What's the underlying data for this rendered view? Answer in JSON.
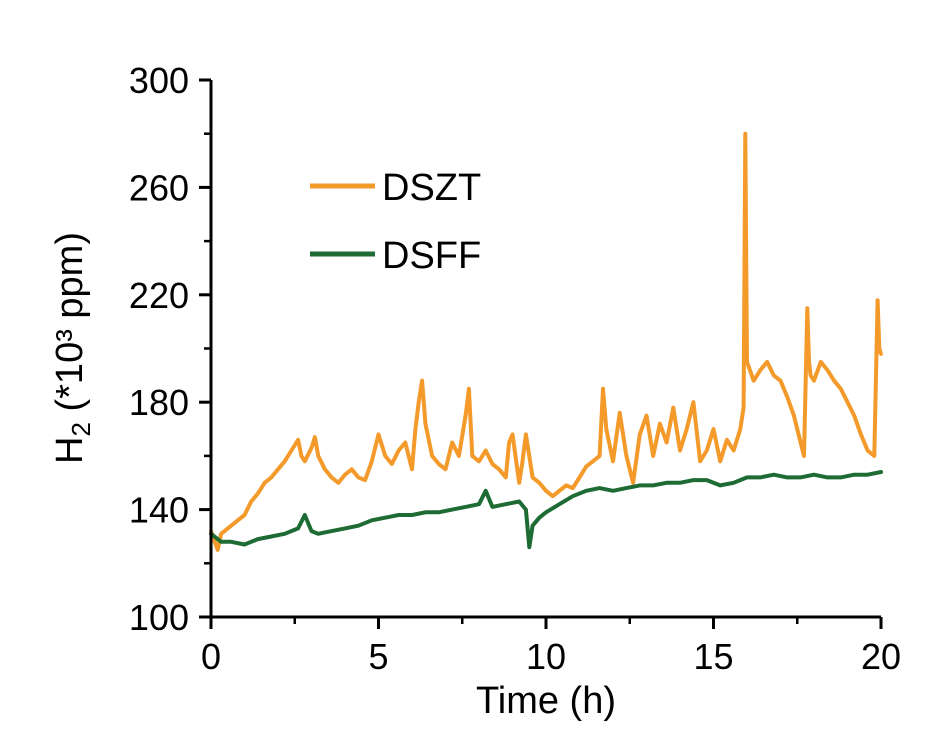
{
  "chart_data": {
    "type": "line",
    "title": "",
    "xlabel": "Time (h)",
    "ylabel_main": "H",
    "ylabel_sub": "2",
    "ylabel_rest": " (*10³ ppm)",
    "xlim": [
      0,
      20
    ],
    "ylim": [
      100,
      300
    ],
    "x_ticks": [
      0,
      5,
      10,
      15,
      20
    ],
    "y_ticks": [
      100,
      140,
      180,
      220,
      260,
      300
    ],
    "grid": false,
    "legend_position": "top-left",
    "series": [
      {
        "name": "DSZT",
        "color": "#F39A2B",
        "x": [
          0,
          0.2,
          0.3,
          0.5,
          0.8,
          1.0,
          1.2,
          1.4,
          1.6,
          1.8,
          2.0,
          2.2,
          2.4,
          2.6,
          2.7,
          2.8,
          3.0,
          3.1,
          3.2,
          3.4,
          3.6,
          3.8,
          4.0,
          4.2,
          4.4,
          4.6,
          4.8,
          5.0,
          5.2,
          5.4,
          5.6,
          5.8,
          6.0,
          6.1,
          6.2,
          6.3,
          6.4,
          6.6,
          6.8,
          7.0,
          7.2,
          7.4,
          7.6,
          7.7,
          7.8,
          8.0,
          8.2,
          8.4,
          8.6,
          8.8,
          8.9,
          9.0,
          9.2,
          9.3,
          9.4,
          9.6,
          9.8,
          10.0,
          10.2,
          10.4,
          10.6,
          10.8,
          11.0,
          11.2,
          11.4,
          11.6,
          11.7,
          11.8,
          12.0,
          12.2,
          12.4,
          12.6,
          12.8,
          13.0,
          13.2,
          13.4,
          13.6,
          13.8,
          14.0,
          14.2,
          14.4,
          14.6,
          14.8,
          15.0,
          15.2,
          15.4,
          15.6,
          15.8,
          15.9,
          15.95,
          16.0,
          16.2,
          16.4,
          16.6,
          16.8,
          17.0,
          17.2,
          17.4,
          17.6,
          17.7,
          17.8,
          17.85,
          17.9,
          18.0,
          18.2,
          18.4,
          18.6,
          18.8,
          19.0,
          19.2,
          19.4,
          19.6,
          19.8,
          19.9,
          19.95,
          20.0
        ],
        "y": [
          132,
          125,
          131,
          133,
          136,
          138,
          143,
          146,
          150,
          152,
          155,
          158,
          162,
          166,
          160,
          158,
          163,
          167,
          160,
          155,
          152,
          150,
          153,
          155,
          152,
          151,
          158,
          168,
          160,
          157,
          162,
          165,
          155,
          170,
          180,
          188,
          172,
          160,
          157,
          155,
          165,
          160,
          175,
          185,
          160,
          158,
          162,
          157,
          155,
          152,
          165,
          168,
          150,
          158,
          168,
          152,
          150,
          147,
          145,
          147,
          149,
          148,
          152,
          156,
          158,
          160,
          185,
          170,
          158,
          176,
          160,
          150,
          168,
          175,
          160,
          172,
          165,
          178,
          162,
          170,
          180,
          158,
          162,
          170,
          158,
          166,
          162,
          170,
          178,
          280,
          195,
          188,
          192,
          195,
          190,
          188,
          182,
          175,
          165,
          160,
          215,
          195,
          190,
          188,
          195,
          192,
          188,
          185,
          180,
          175,
          168,
          162,
          160,
          218,
          200,
          198
        ]
      },
      {
        "name": "DSFF",
        "color": "#1E6B34",
        "x": [
          0,
          0.3,
          0.6,
          1.0,
          1.4,
          1.8,
          2.2,
          2.6,
          2.8,
          3.0,
          3.2,
          3.6,
          4.0,
          4.4,
          4.8,
          5.2,
          5.6,
          6.0,
          6.4,
          6.8,
          7.2,
          7.6,
          8.0,
          8.2,
          8.4,
          8.8,
          9.2,
          9.4,
          9.5,
          9.6,
          9.8,
          10.0,
          10.4,
          10.8,
          11.2,
          11.6,
          12.0,
          12.4,
          12.8,
          13.2,
          13.6,
          14.0,
          14.4,
          14.8,
          15.2,
          15.6,
          16.0,
          16.4,
          16.8,
          17.2,
          17.6,
          18.0,
          18.4,
          18.8,
          19.2,
          19.6,
          20.0
        ],
        "y": [
          131,
          128,
          128,
          127,
          129,
          130,
          131,
          133,
          138,
          132,
          131,
          132,
          133,
          134,
          136,
          137,
          138,
          138,
          139,
          139,
          140,
          141,
          142,
          147,
          141,
          142,
          143,
          140,
          126,
          134,
          137,
          139,
          142,
          145,
          147,
          148,
          147,
          148,
          149,
          149,
          150,
          150,
          151,
          151,
          149,
          150,
          152,
          152,
          153,
          152,
          152,
          153,
          152,
          152,
          153,
          153,
          154
        ]
      }
    ]
  }
}
